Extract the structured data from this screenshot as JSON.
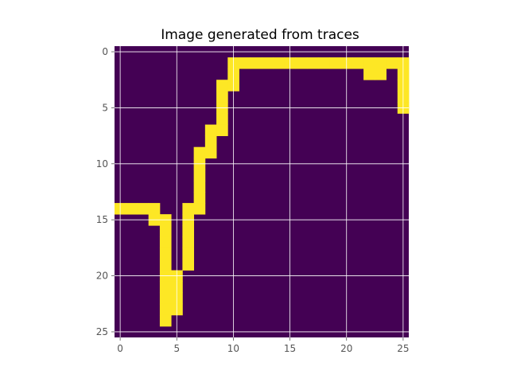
{
  "chart_data": {
    "type": "heatmap",
    "title": "Image generated from traces",
    "xlabel": "",
    "ylabel": "",
    "shape": [
      26,
      26
    ],
    "xlim": [
      -0.5,
      25.5
    ],
    "ylim": [
      25.5,
      -0.5
    ],
    "x_ticks": [
      0,
      5,
      10,
      15,
      20,
      25
    ],
    "y_ticks": [
      0,
      5,
      10,
      15,
      20,
      25
    ],
    "grid": true,
    "colormap": "viridis",
    "colors": {
      "background": "#440154",
      "trace": "#fde725",
      "grid": "#ffffff"
    },
    "value_range": [
      0,
      1
    ],
    "filled_cells": [
      [
        1,
        10
      ],
      [
        1,
        11
      ],
      [
        1,
        12
      ],
      [
        1,
        13
      ],
      [
        1,
        14
      ],
      [
        1,
        15
      ],
      [
        1,
        16
      ],
      [
        1,
        17
      ],
      [
        1,
        18
      ],
      [
        1,
        19
      ],
      [
        1,
        20
      ],
      [
        1,
        21
      ],
      [
        1,
        22
      ],
      [
        1,
        23
      ],
      [
        1,
        24
      ],
      [
        1,
        25
      ],
      [
        2,
        10
      ],
      [
        2,
        22
      ],
      [
        2,
        23
      ],
      [
        2,
        25
      ],
      [
        3,
        9
      ],
      [
        3,
        10
      ],
      [
        3,
        25
      ],
      [
        4,
        9
      ],
      [
        4,
        25
      ],
      [
        5,
        9
      ],
      [
        5,
        25
      ],
      [
        6,
        9
      ],
      [
        7,
        8
      ],
      [
        7,
        9
      ],
      [
        8,
        8
      ],
      [
        9,
        7
      ],
      [
        9,
        8
      ],
      [
        10,
        7
      ],
      [
        11,
        7
      ],
      [
        12,
        7
      ],
      [
        13,
        7
      ],
      [
        14,
        0
      ],
      [
        14,
        1
      ],
      [
        14,
        2
      ],
      [
        14,
        3
      ],
      [
        14,
        6
      ],
      [
        14,
        7
      ],
      [
        15,
        3
      ],
      [
        15,
        4
      ],
      [
        15,
        6
      ],
      [
        16,
        4
      ],
      [
        16,
        6
      ],
      [
        17,
        4
      ],
      [
        17,
        6
      ],
      [
        18,
        4
      ],
      [
        18,
        6
      ],
      [
        19,
        4
      ],
      [
        19,
        6
      ],
      [
        20,
        4
      ],
      [
        20,
        5
      ],
      [
        21,
        4
      ],
      [
        21,
        5
      ],
      [
        22,
        4
      ],
      [
        22,
        5
      ],
      [
        23,
        4
      ],
      [
        23,
        5
      ],
      [
        24,
        4
      ]
    ]
  }
}
